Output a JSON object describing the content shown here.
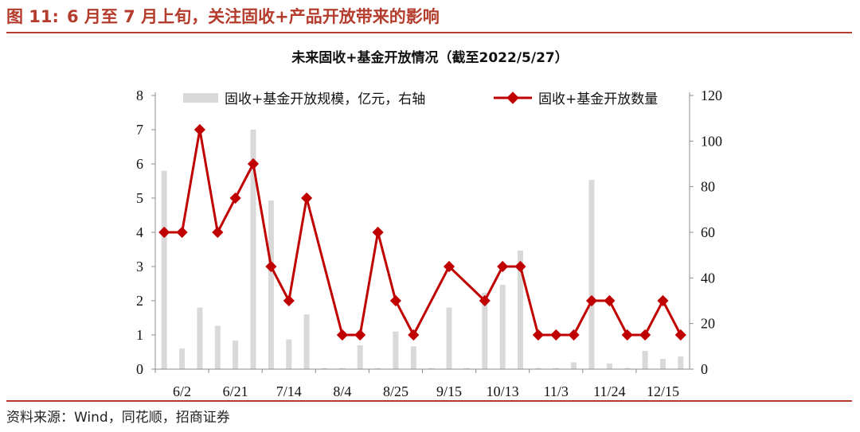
{
  "figure": {
    "label": "图 11:",
    "caption": "6 月至 7 月上旬，关注固收+产品开放带来的影响",
    "source": "资料来源：Wind，同花顺，招商证券"
  },
  "colors": {
    "accent": "#b43c2c",
    "bar": "#d9d9d9",
    "line": "#c00000"
  },
  "chart_data": {
    "type": "bar+line",
    "title": "未来固收+基金开放情况（截至2022/5/27）",
    "x_tick_labels": [
      "6/2",
      "6/21",
      "7/14",
      "8/4",
      "8/25",
      "9/15",
      "10/13",
      "11/3",
      "11/24",
      "12/15"
    ],
    "left_axis": {
      "min": 0,
      "max": 8,
      "ticks": [
        0,
        1,
        2,
        3,
        4,
        5,
        6,
        7,
        8
      ]
    },
    "right_axis": {
      "min": 0,
      "max": 120,
      "ticks": [
        0,
        20,
        40,
        60,
        80,
        100,
        120
      ]
    },
    "legend": {
      "placement": "top"
    },
    "series": [
      {
        "name": "固收+基金开放规模，亿元，右轴",
        "kind": "bar",
        "axis": "right",
        "values": [
          87,
          9,
          27,
          19,
          12.5,
          105,
          74,
          13,
          24,
          0.5,
          0.5,
          10.5,
          0.5,
          16.5,
          10,
          0.5,
          27,
          0.5,
          33.5,
          37,
          52,
          0.5,
          0.5,
          3,
          83,
          2.5,
          0.5,
          8,
          4.5,
          5.5
        ]
      },
      {
        "name": "固收+基金开放数量",
        "kind": "line",
        "axis": "left",
        "points": [
          [
            0,
            4
          ],
          [
            1,
            4
          ],
          [
            2,
            7
          ],
          [
            3,
            4
          ],
          [
            4,
            5
          ],
          [
            5,
            6
          ],
          [
            6,
            3
          ],
          [
            7,
            2
          ],
          [
            8,
            5
          ],
          [
            10,
            1
          ],
          [
            11,
            1
          ],
          [
            12,
            4
          ],
          [
            13,
            2
          ],
          [
            14,
            1
          ],
          [
            16,
            3
          ],
          [
            18,
            2
          ],
          [
            19,
            3
          ],
          [
            20,
            3
          ],
          [
            21,
            1
          ],
          [
            22,
            1
          ],
          [
            23,
            1
          ],
          [
            24,
            2
          ],
          [
            25,
            2
          ],
          [
            26,
            1
          ],
          [
            27,
            1
          ],
          [
            28,
            2
          ],
          [
            29,
            1
          ]
        ]
      }
    ]
  }
}
